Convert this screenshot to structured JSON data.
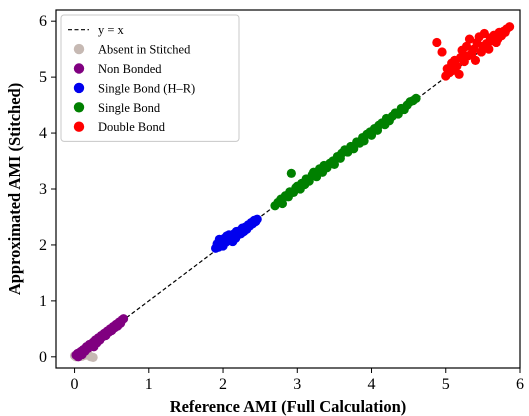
{
  "chart_data": {
    "type": "scatter",
    "xlabel": "Reference AMI (Full Calculation)",
    "ylabel": "Approximated AMI (Stitched)",
    "xlim": [
      -0.25,
      6.0
    ],
    "ylim": [
      -0.2,
      6.2
    ],
    "xticks": [
      0,
      1,
      2,
      3,
      4,
      5,
      6
    ],
    "yticks": [
      0,
      1,
      2,
      3,
      4,
      5,
      6
    ],
    "grid": false,
    "legend_position": "top-left",
    "reference_line": {
      "label": "y = x",
      "color": "#000000",
      "style": "dashed"
    },
    "series": [
      {
        "name": "Absent in Stitched",
        "color": "#c6b9b3",
        "points": [
          [
            0.0,
            0.02
          ],
          [
            0.02,
            0.0
          ],
          [
            0.04,
            0.05
          ],
          [
            0.06,
            0.02
          ],
          [
            0.08,
            0.04
          ],
          [
            0.1,
            0.01
          ],
          [
            0.15,
            0.03
          ],
          [
            0.18,
            0.06
          ],
          [
            0.22,
            0.0
          ],
          [
            0.25,
            -0.01
          ]
        ]
      },
      {
        "name": "Non Bonded",
        "color": "#800080",
        "points": [
          [
            0.02,
            0.03
          ],
          [
            0.04,
            0.06
          ],
          [
            0.05,
            0.0
          ],
          [
            0.07,
            0.08
          ],
          [
            0.09,
            0.1
          ],
          [
            0.1,
            0.04
          ],
          [
            0.12,
            0.13
          ],
          [
            0.14,
            0.1
          ],
          [
            0.16,
            0.18
          ],
          [
            0.18,
            0.15
          ],
          [
            0.2,
            0.22
          ],
          [
            0.22,
            0.2
          ],
          [
            0.25,
            0.26
          ],
          [
            0.26,
            0.18
          ],
          [
            0.28,
            0.3
          ],
          [
            0.3,
            0.25
          ],
          [
            0.32,
            0.34
          ],
          [
            0.34,
            0.3
          ],
          [
            0.36,
            0.38
          ],
          [
            0.38,
            0.36
          ],
          [
            0.4,
            0.42
          ],
          [
            0.42,
            0.38
          ],
          [
            0.44,
            0.46
          ],
          [
            0.46,
            0.44
          ],
          [
            0.48,
            0.5
          ],
          [
            0.5,
            0.47
          ],
          [
            0.52,
            0.54
          ],
          [
            0.54,
            0.52
          ],
          [
            0.56,
            0.58
          ],
          [
            0.58,
            0.55
          ],
          [
            0.6,
            0.62
          ],
          [
            0.62,
            0.6
          ],
          [
            0.64,
            0.66
          ],
          [
            0.66,
            0.68
          ]
        ]
      },
      {
        "name": "Single Bond (H–R)",
        "color": "#0000ee",
        "points": [
          [
            1.9,
            1.94
          ],
          [
            1.92,
            2.02
          ],
          [
            1.94,
            1.96
          ],
          [
            1.95,
            2.1
          ],
          [
            1.97,
            2.0
          ],
          [
            1.99,
            2.06
          ],
          [
            2.0,
            1.98
          ],
          [
            2.02,
            2.12
          ],
          [
            2.04,
            2.05
          ],
          [
            2.05,
            2.16
          ],
          [
            2.07,
            2.08
          ],
          [
            2.08,
            2.18
          ],
          [
            2.1,
            2.1
          ],
          [
            2.12,
            2.15
          ],
          [
            2.13,
            2.06
          ],
          [
            2.15,
            2.2
          ],
          [
            2.17,
            2.12
          ],
          [
            2.18,
            2.24
          ],
          [
            2.2,
            2.18
          ],
          [
            2.22,
            2.25
          ],
          [
            2.24,
            2.2
          ],
          [
            2.26,
            2.3
          ],
          [
            2.28,
            2.24
          ],
          [
            2.3,
            2.32
          ],
          [
            2.32,
            2.28
          ],
          [
            2.34,
            2.36
          ],
          [
            2.36,
            2.34
          ],
          [
            2.38,
            2.4
          ],
          [
            2.4,
            2.38
          ],
          [
            2.42,
            2.44
          ],
          [
            2.44,
            2.42
          ],
          [
            2.46,
            2.46
          ]
        ]
      },
      {
        "name": "Single Bond",
        "color": "#008000",
        "points": [
          [
            2.7,
            2.7
          ],
          [
            2.74,
            2.76
          ],
          [
            2.78,
            2.82
          ],
          [
            2.8,
            2.74
          ],
          [
            2.84,
            2.88
          ],
          [
            2.88,
            2.86
          ],
          [
            2.9,
            2.95
          ],
          [
            2.92,
            3.28
          ],
          [
            2.95,
            2.94
          ],
          [
            2.98,
            3.02
          ],
          [
            3.0,
            3.05
          ],
          [
            3.04,
            3.0
          ],
          [
            3.06,
            3.1
          ],
          [
            3.1,
            3.08
          ],
          [
            3.12,
            3.18
          ],
          [
            3.16,
            3.14
          ],
          [
            3.2,
            3.25
          ],
          [
            3.22,
            3.3
          ],
          [
            3.26,
            3.22
          ],
          [
            3.3,
            3.36
          ],
          [
            3.34,
            3.3
          ],
          [
            3.36,
            3.42
          ],
          [
            3.4,
            3.38
          ],
          [
            3.44,
            3.46
          ],
          [
            3.48,
            3.5
          ],
          [
            3.5,
            3.44
          ],
          [
            3.54,
            3.58
          ],
          [
            3.58,
            3.55
          ],
          [
            3.6,
            3.64
          ],
          [
            3.64,
            3.7
          ],
          [
            3.68,
            3.66
          ],
          [
            3.72,
            3.76
          ],
          [
            3.76,
            3.72
          ],
          [
            3.8,
            3.84
          ],
          [
            3.84,
            3.82
          ],
          [
            3.88,
            3.92
          ],
          [
            3.9,
            3.86
          ],
          [
            3.94,
            3.98
          ],
          [
            3.98,
            4.02
          ],
          [
            4.0,
            3.96
          ],
          [
            4.04,
            4.08
          ],
          [
            4.08,
            4.05
          ],
          [
            4.1,
            4.14
          ],
          [
            4.14,
            4.18
          ],
          [
            4.18,
            4.15
          ],
          [
            4.2,
            4.26
          ],
          [
            4.24,
            4.22
          ],
          [
            4.28,
            4.3
          ],
          [
            4.32,
            4.36
          ],
          [
            4.36,
            4.34
          ],
          [
            4.4,
            4.44
          ],
          [
            4.44,
            4.42
          ],
          [
            4.48,
            4.5
          ],
          [
            4.52,
            4.56
          ],
          [
            4.56,
            4.58
          ],
          [
            4.6,
            4.62
          ]
        ]
      },
      {
        "name": "Double Bond",
        "color": "#ff0000",
        "points": [
          [
            4.88,
            5.62
          ],
          [
            4.95,
            5.45
          ],
          [
            5.0,
            5.02
          ],
          [
            5.02,
            5.15
          ],
          [
            5.05,
            5.08
          ],
          [
            5.08,
            5.25
          ],
          [
            5.1,
            5.12
          ],
          [
            5.12,
            5.3
          ],
          [
            5.15,
            5.2
          ],
          [
            5.18,
            5.05
          ],
          [
            5.2,
            5.35
          ],
          [
            5.22,
            5.48
          ],
          [
            5.25,
            5.28
          ],
          [
            5.28,
            5.55
          ],
          [
            5.3,
            5.38
          ],
          [
            5.32,
            5.68
          ],
          [
            5.35,
            5.42
          ],
          [
            5.38,
            5.5
          ],
          [
            5.4,
            5.3
          ],
          [
            5.42,
            5.62
          ],
          [
            5.45,
            5.72
          ],
          [
            5.48,
            5.45
          ],
          [
            5.5,
            5.55
          ],
          [
            5.52,
            5.78
          ],
          [
            5.55,
            5.6
          ],
          [
            5.58,
            5.5
          ],
          [
            5.6,
            5.7
          ],
          [
            5.62,
            5.65
          ],
          [
            5.65,
            5.75
          ],
          [
            5.68,
            5.62
          ],
          [
            5.7,
            5.68
          ],
          [
            5.72,
            5.8
          ],
          [
            5.75,
            5.74
          ],
          [
            5.78,
            5.82
          ],
          [
            5.8,
            5.8
          ],
          [
            5.82,
            5.86
          ],
          [
            5.86,
            5.9
          ]
        ]
      }
    ]
  }
}
